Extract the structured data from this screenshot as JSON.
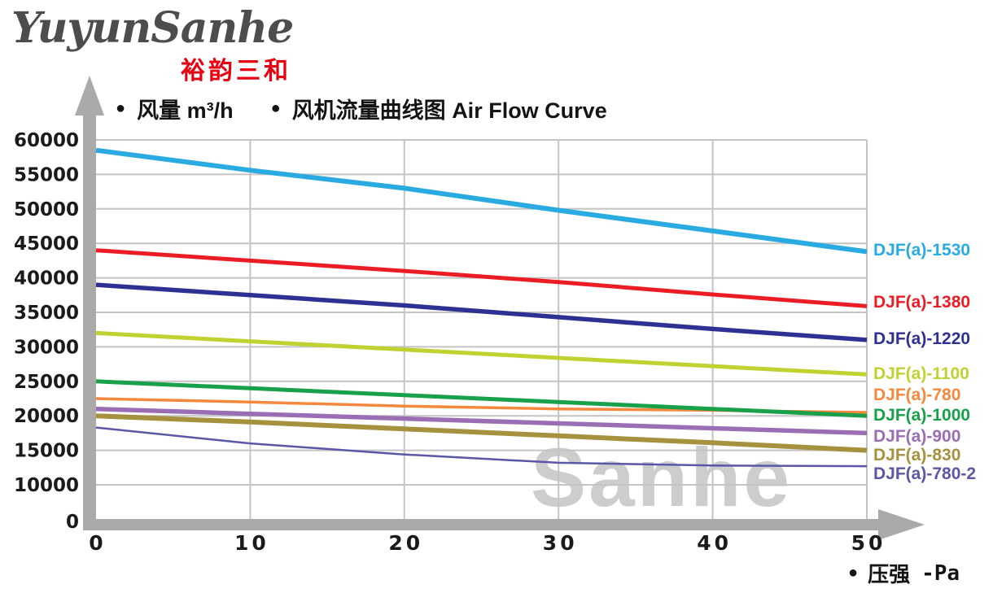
{
  "logo": {
    "brand": "YuyunSanhe",
    "brand_cn": "裕韵三和"
  },
  "header": {
    "bullet": "●",
    "y_axis_legend": "风量 m³/h",
    "chart_title": "风机流量曲线图 Air Flow Curve"
  },
  "footer": {
    "bullet": "●",
    "x_axis_legend": "压强",
    "x_axis_unit": "-Pa"
  },
  "watermark": "Sanhe",
  "colors": {
    "axis_gray": "#ACA9A9",
    "grid_gray": "#C4C4C4",
    "watermark_gray": "#CDCDCD",
    "logo_red": "#E60012",
    "text_black": "#1a1a1a"
  },
  "chart_data": {
    "type": "line",
    "title": "风机流量曲线图 Air Flow Curve",
    "xlabel": "压强 -Pa",
    "ylabel": "风量 m³/h",
    "xlim": [
      0,
      50
    ],
    "ylim": [
      0,
      60000
    ],
    "x_ticks": [
      0,
      10,
      20,
      30,
      40,
      50
    ],
    "y_ticks": [
      60000,
      55000,
      50000,
      45000,
      40000,
      35000,
      30000,
      25000,
      20000,
      15000,
      10000,
      0
    ],
    "grid": true,
    "legend_position": "right-of-line-ends",
    "x": [
      0,
      10,
      20,
      30,
      40,
      50
    ],
    "series": [
      {
        "name": "DJF(a)-1530",
        "color": "#29ABE2",
        "line_width": 6,
        "label_offset": 0,
        "values": [
          58500,
          55600,
          53000,
          49800,
          46800,
          43800
        ]
      },
      {
        "name": "DJF(a)-1380",
        "color": "#EC1C24",
        "line_width": 5,
        "label_offset": -3,
        "values": [
          44000,
          42500,
          41000,
          39400,
          37600,
          35900
        ]
      },
      {
        "name": "DJF(a)-1220",
        "color": "#2E3192",
        "line_width": 5.5,
        "label_offset": 0,
        "values": [
          39000,
          37500,
          36000,
          34300,
          32600,
          31000
        ]
      },
      {
        "name": "DJF(a)-1100",
        "color": "#BFD232",
        "line_width": 5,
        "label_offset": 1,
        "values": [
          32000,
          30800,
          29600,
          28400,
          27200,
          26000
        ]
      },
      {
        "name": "DJF(a)-780",
        "color": "#F6883D",
        "line_width": 3.5,
        "label_offset": -20,
        "values": [
          22500,
          22000,
          21400,
          21000,
          20800,
          20500
        ]
      },
      {
        "name": "DJF(a)-1000",
        "color": "#19A04B",
        "line_width": 5,
        "label_offset": 1,
        "values": [
          25000,
          24000,
          23000,
          22000,
          21000,
          20000
        ]
      },
      {
        "name": "DJF(a)-900",
        "color": "#9B6DB5",
        "line_width": 5.5,
        "label_offset": 6,
        "values": [
          21000,
          20300,
          19600,
          18900,
          18200,
          17500
        ]
      },
      {
        "name": "DJF(a)-830",
        "color": "#A6923E",
        "line_width": 6,
        "label_offset": 7,
        "values": [
          20000,
          19100,
          18100,
          17100,
          16100,
          15000
        ]
      },
      {
        "name": "DJF(a)-780-2",
        "color": "#5B57A6",
        "line_width": 2.5,
        "label_offset": 11,
        "values": [
          18300,
          16000,
          14400,
          13200,
          12800,
          12700
        ]
      }
    ]
  }
}
